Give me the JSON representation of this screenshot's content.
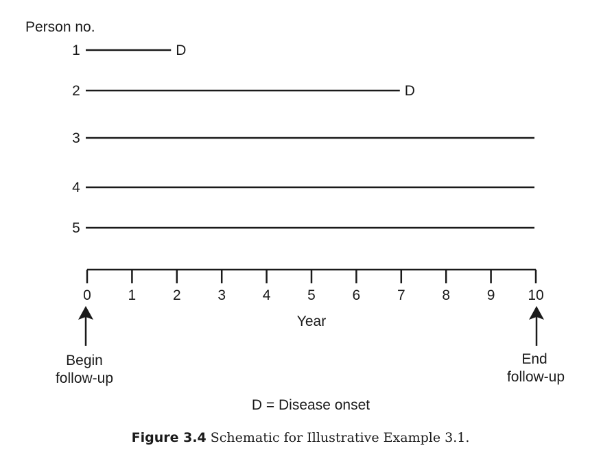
{
  "y_axis_title": "Person no.",
  "persons": [
    {
      "label": "1",
      "start": 0,
      "end": 1.9,
      "event": "D"
    },
    {
      "label": "2",
      "start": 0,
      "end": 7.0,
      "event": "D"
    },
    {
      "label": "3",
      "start": 0,
      "end": 10,
      "event": ""
    },
    {
      "label": "4",
      "start": 0,
      "end": 10,
      "event": ""
    },
    {
      "label": "5",
      "start": 0,
      "end": 10,
      "event": ""
    }
  ],
  "x_axis": {
    "title": "Year",
    "ticks": [
      "0",
      "1",
      "2",
      "3",
      "4",
      "5",
      "6",
      "7",
      "8",
      "9",
      "10"
    ],
    "min": 0,
    "max": 10
  },
  "begin_label": [
    "Begin",
    "follow-up"
  ],
  "end_label": [
    "End",
    "follow-up"
  ],
  "legend": "D = Disease onset",
  "caption": {
    "figure": "Figure 3.4",
    "text": "Schematic for Illustrative Example 3.1."
  },
  "icons": {
    "begin_arrow": "up-arrow-icon",
    "end_arrow": "up-arrow-icon"
  }
}
